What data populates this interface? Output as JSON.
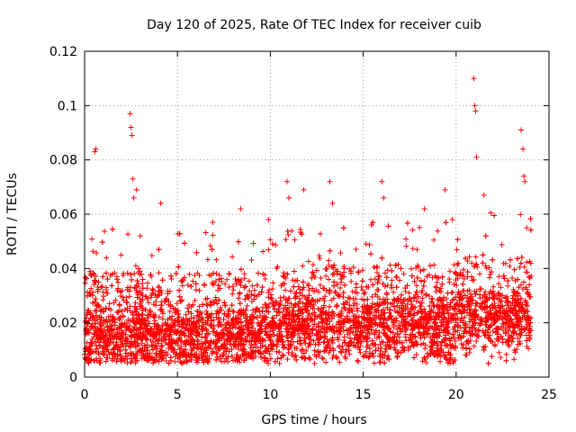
{
  "chart_data": {
    "type": "scatter",
    "title": "Day 120 of 2025, Rate Of TEC Index for receiver cuib",
    "xlabel": "GPS time / hours",
    "ylabel": "ROTI / TECUs",
    "xlim": [
      0,
      25
    ],
    "ylim": [
      0,
      0.12
    ],
    "xticks": [
      "0",
      "5",
      "10",
      "15",
      "20",
      "25"
    ],
    "yticks": [
      "0",
      "0.02",
      "0.04",
      "0.06",
      "0.08",
      "0.1",
      "0.12"
    ],
    "grid": true,
    "marker": "+",
    "series_color": "#ff0000",
    "series": [
      {
        "x": [
          0.3,
          0.55,
          0.6,
          2.45,
          2.5,
          2.55,
          2.6,
          2.65,
          2.8,
          3.0,
          4.1,
          6.9,
          8.4,
          9.9,
          10.9,
          11.0,
          11.8,
          13.2,
          13.35,
          16.0,
          16.1,
          17.9,
          18.3,
          19.4,
          19.8,
          20.95,
          21.0,
          21.05,
          21.1,
          21.5,
          23.5,
          23.6,
          23.65,
          23.7,
          23.8
        ],
        "y": [
          0.039,
          0.083,
          0.084,
          0.097,
          0.092,
          0.089,
          0.073,
          0.066,
          0.069,
          0.052,
          0.064,
          0.057,
          0.062,
          0.058,
          0.072,
          0.066,
          0.069,
          0.072,
          0.064,
          0.072,
          0.066,
          0.047,
          0.062,
          0.069,
          0.058,
          0.11,
          0.1,
          0.098,
          0.081,
          0.067,
          0.091,
          0.084,
          0.074,
          0.072,
          0.055
        ]
      }
    ]
  }
}
